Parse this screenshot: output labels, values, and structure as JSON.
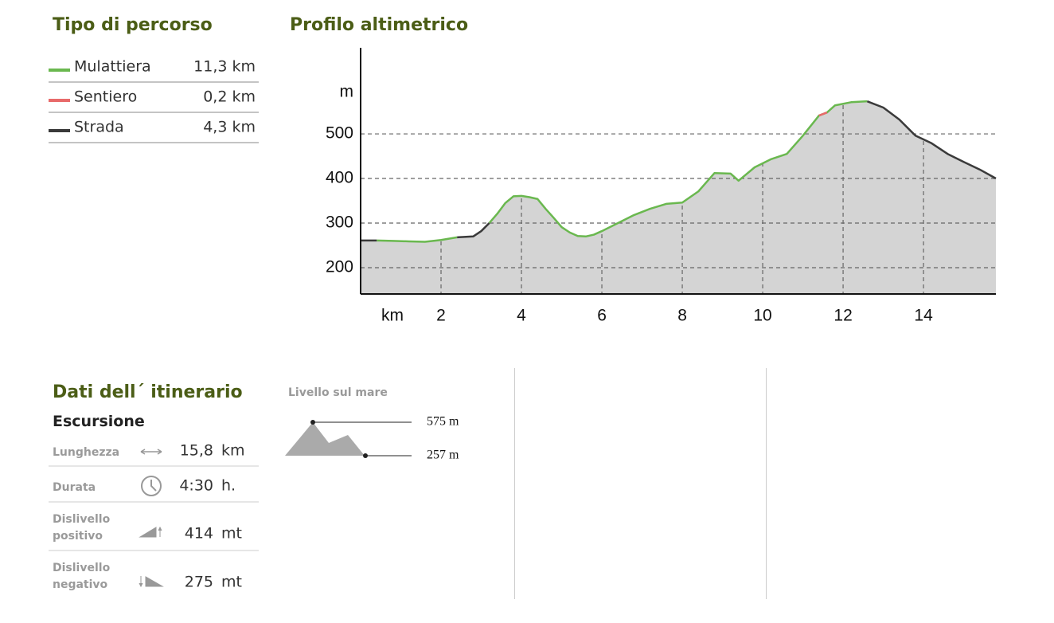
{
  "route_types_title": "Tipo di percorso",
  "profile_title": "Profilo altimetrico",
  "chart_data": {
    "type": "line",
    "x_label": "km",
    "y_label": "m",
    "x": [
      0,
      0.4,
      0.8,
      1.2,
      1.6,
      2.0,
      2.4,
      2.8,
      3.0,
      3.2,
      3.4,
      3.6,
      3.8,
      4.0,
      4.2,
      4.4,
      4.6,
      4.8,
      5.0,
      5.2,
      5.4,
      5.6,
      5.8,
      6.0,
      6.4,
      6.8,
      7.2,
      7.6,
      8.0,
      8.4,
      8.8,
      9.2,
      9.4,
      9.8,
      10.2,
      10.6,
      11.0,
      11.4,
      11.6,
      11.8,
      12.2,
      12.6,
      13.0,
      13.4,
      13.8,
      14.2,
      14.6,
      15.0,
      15.4,
      15.8
    ],
    "series": [
      {
        "name": "Mulattiera",
        "length": "11,3 km",
        "color": "#6ab84f",
        "values": [
          null,
          261,
          260,
          259,
          258,
          262,
          268,
          null,
          null,
          300,
          321,
          345,
          360,
          361,
          358,
          354,
          332,
          312,
          291,
          279,
          271,
          270,
          274,
          282,
          300,
          318,
          332,
          343,
          346,
          371,
          412,
          411,
          395,
          425,
          443,
          455,
          496,
          541,
          548,
          564,
          571,
          573,
          null,
          null,
          null,
          null,
          null,
          null,
          null,
          null
        ]
      },
      {
        "name": "Sentiero",
        "length": "0,2 km",
        "color": "#e86a6a",
        "values": [
          null,
          null,
          null,
          null,
          null,
          null,
          null,
          null,
          null,
          null,
          null,
          null,
          null,
          null,
          null,
          null,
          null,
          null,
          null,
          null,
          null,
          null,
          null,
          null,
          null,
          null,
          null,
          null,
          null,
          null,
          null,
          null,
          null,
          null,
          null,
          null,
          null,
          541,
          548,
          null,
          null,
          null,
          null,
          null,
          null,
          null,
          null,
          null,
          null,
          null
        ]
      },
      {
        "name": "Strada",
        "length": "4,3 km",
        "color": "#3a3a3a",
        "values": [
          261,
          261,
          null,
          null,
          null,
          null,
          268,
          270,
          282,
          300,
          null,
          null,
          null,
          null,
          null,
          null,
          null,
          null,
          null,
          null,
          null,
          null,
          null,
          null,
          null,
          null,
          null,
          null,
          null,
          null,
          null,
          null,
          null,
          null,
          null,
          null,
          null,
          null,
          null,
          null,
          null,
          573,
          559,
          532,
          496,
          479,
          455,
          437,
          420,
          400
        ]
      }
    ],
    "area_color": "#d4d4d4",
    "xlim": [
      0,
      15.8
    ],
    "ylim": [
      141,
      693
    ],
    "xticks": [
      2,
      4,
      6,
      8,
      10,
      12,
      14
    ],
    "yticks": [
      200,
      300,
      400,
      500
    ],
    "grid": true
  },
  "itinerary": {
    "title": "Dati dell´ itinerario",
    "subtitle": "Escursione",
    "rows": [
      {
        "label": [
          "Lunghezza"
        ],
        "value": "15,8",
        "unit": "km"
      },
      {
        "label": [
          "Durata"
        ],
        "value": "4:30",
        "unit": "h."
      },
      {
        "label": [
          "Dislivello",
          "positivo"
        ],
        "value": "414",
        "unit": "mt"
      },
      {
        "label": [
          "Dislivello",
          "negativo"
        ],
        "value": "275",
        "unit": "mt"
      }
    ]
  },
  "sea_level": {
    "title": "Livello sul mare",
    "max": "575 m",
    "min": "257 m"
  }
}
